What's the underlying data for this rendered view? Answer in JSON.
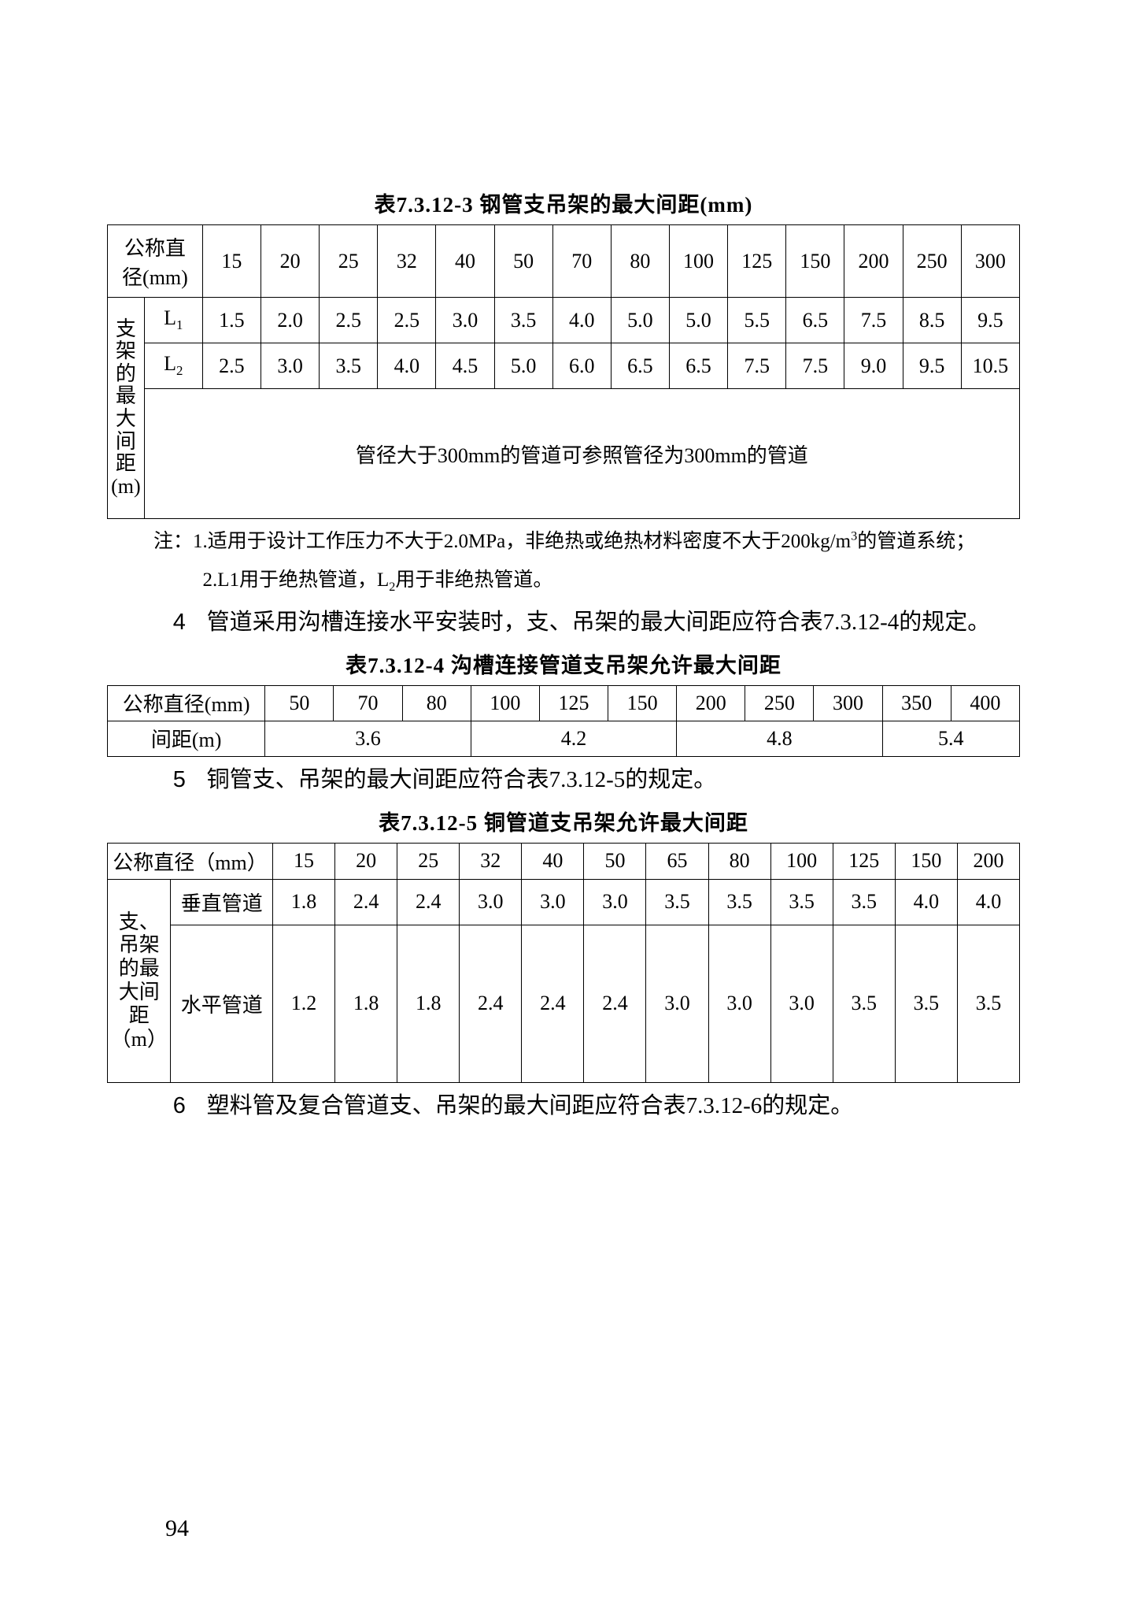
{
  "page_number": "94",
  "table3": {
    "title": "表7.3.12-3  钢管支吊架的最大间距(mm)",
    "row_label_header": "公称直径(mm)",
    "side_label": "支架的最大间距（m）",
    "columns": [
      "15",
      "20",
      "25",
      "32",
      "40",
      "50",
      "70",
      "80",
      "100",
      "125",
      "150",
      "200",
      "250",
      "300"
    ],
    "l1_label": "L₁",
    "l1": [
      "1.5",
      "2.0",
      "2.5",
      "2.5",
      "3.0",
      "3.5",
      "4.0",
      "5.0",
      "5.0",
      "5.5",
      "6.5",
      "7.5",
      "8.5",
      "9.5"
    ],
    "l2_label": "L₂",
    "l2": [
      "2.5",
      "3.0",
      "3.5",
      "4.0",
      "4.5",
      "5.0",
      "6.0",
      "6.5",
      "6.5",
      "7.5",
      "7.5",
      "9.0",
      "9.5",
      "10.5"
    ],
    "merged_note": "管径大于300mm的管道可参照管径为300mm的管道",
    "note1": "注：1.适用于设计工作压力不大于2.0MPa，非绝热或绝热材料密度不大于200kg/m³的管道系统；",
    "note2": "2.L1用于绝热管道，L₂用于非绝热管道。",
    "border_color": "#000000",
    "background_color": "#ffffff"
  },
  "para4": "4　管道采用沟槽连接水平安装时，支、吊架的最大间距应符合表7.3.12-4的规定。",
  "table4": {
    "title": "表7.3.12-4  沟槽连接管道支吊架允许最大间距",
    "row_label_header": "公称直径(mm)",
    "columns": [
      "50",
      "70",
      "80",
      "100",
      "125",
      "150",
      "200",
      "250",
      "300",
      "350",
      "400"
    ],
    "span_label": "间距(m)",
    "spans": [
      {
        "value": "3.6",
        "colspan": 3
      },
      {
        "value": "4.2",
        "colspan": 3
      },
      {
        "value": "4.8",
        "colspan": 3
      },
      {
        "value": "5.4",
        "colspan": 2
      }
    ],
    "border_color": "#000000",
    "background_color": "#ffffff"
  },
  "para5": "5　铜管支、吊架的最大间距应符合表7.3.12-5的规定。",
  "table5": {
    "title": "表7.3.12-5  铜管道支吊架允许最大间距",
    "row_label_header": "公称直径（mm）",
    "side_label": "支、吊架的最大间距（m）",
    "columns": [
      "15",
      "20",
      "25",
      "32",
      "40",
      "50",
      "65",
      "80",
      "100",
      "125",
      "150",
      "200"
    ],
    "vert_label": "垂直管道",
    "vert": [
      "1.8",
      "2.4",
      "2.4",
      "3.0",
      "3.0",
      "3.0",
      "3.5",
      "3.5",
      "3.5",
      "3.5",
      "4.0",
      "4.0"
    ],
    "horiz_label": "水平管道",
    "horiz": [
      "1.2",
      "1.8",
      "1.8",
      "2.4",
      "2.4",
      "2.4",
      "3.0",
      "3.0",
      "3.0",
      "3.5",
      "3.5",
      "3.5"
    ],
    "border_color": "#000000",
    "background_color": "#ffffff"
  },
  "para6": "6　塑料管及复合管道支、吊架的最大间距应符合表7.3.12-6的规定。"
}
